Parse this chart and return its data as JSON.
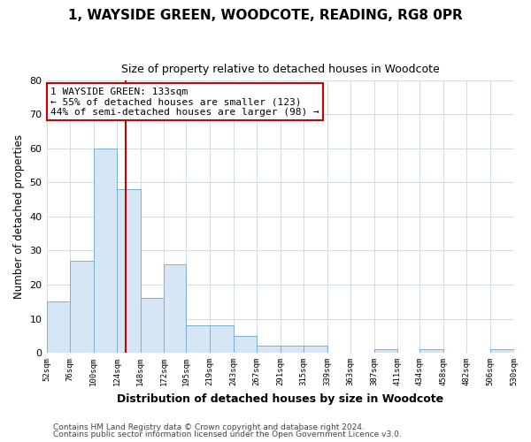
{
  "title": "1, WAYSIDE GREEN, WOODCOTE, READING, RG8 0PR",
  "subtitle": "Size of property relative to detached houses in Woodcote",
  "xlabel": "Distribution of detached houses by size in Woodcote",
  "ylabel": "Number of detached properties",
  "bar_color": "#d6e6f5",
  "bar_edge_color": "#7ab0d4",
  "bin_edges": [
    52,
    76,
    100,
    124,
    148,
    172,
    195,
    219,
    243,
    267,
    291,
    315,
    339,
    363,
    387,
    411,
    434,
    458,
    482,
    506,
    530
  ],
  "bar_heights": [
    15,
    27,
    60,
    48,
    16,
    26,
    8,
    8,
    5,
    2,
    2,
    2,
    0,
    0,
    1,
    0,
    1,
    0,
    0,
    1
  ],
  "x_tick_labels": [
    "52sqm",
    "76sqm",
    "100sqm",
    "124sqm",
    "148sqm",
    "172sqm",
    "195sqm",
    "219sqm",
    "243sqm",
    "267sqm",
    "291sqm",
    "315sqm",
    "339sqm",
    "363sqm",
    "387sqm",
    "411sqm",
    "434sqm",
    "458sqm",
    "482sqm",
    "506sqm",
    "530sqm"
  ],
  "vline_x": 133,
  "vline_color": "#cc0000",
  "ylim": [
    0,
    80
  ],
  "yticks": [
    0,
    10,
    20,
    30,
    40,
    50,
    60,
    70,
    80
  ],
  "annotation_text": "1 WAYSIDE GREEN: 133sqm\n← 55% of detached houses are smaller (123)\n44% of semi-detached houses are larger (98) →",
  "annotation_box_color": "#ffffff",
  "annotation_box_edge": "#cc0000",
  "footer_line1": "Contains HM Land Registry data © Crown copyright and database right 2024.",
  "footer_line2": "Contains public sector information licensed under the Open Government Licence v3.0.",
  "grid_color": "#d0dce8",
  "background_color": "#ffffff"
}
